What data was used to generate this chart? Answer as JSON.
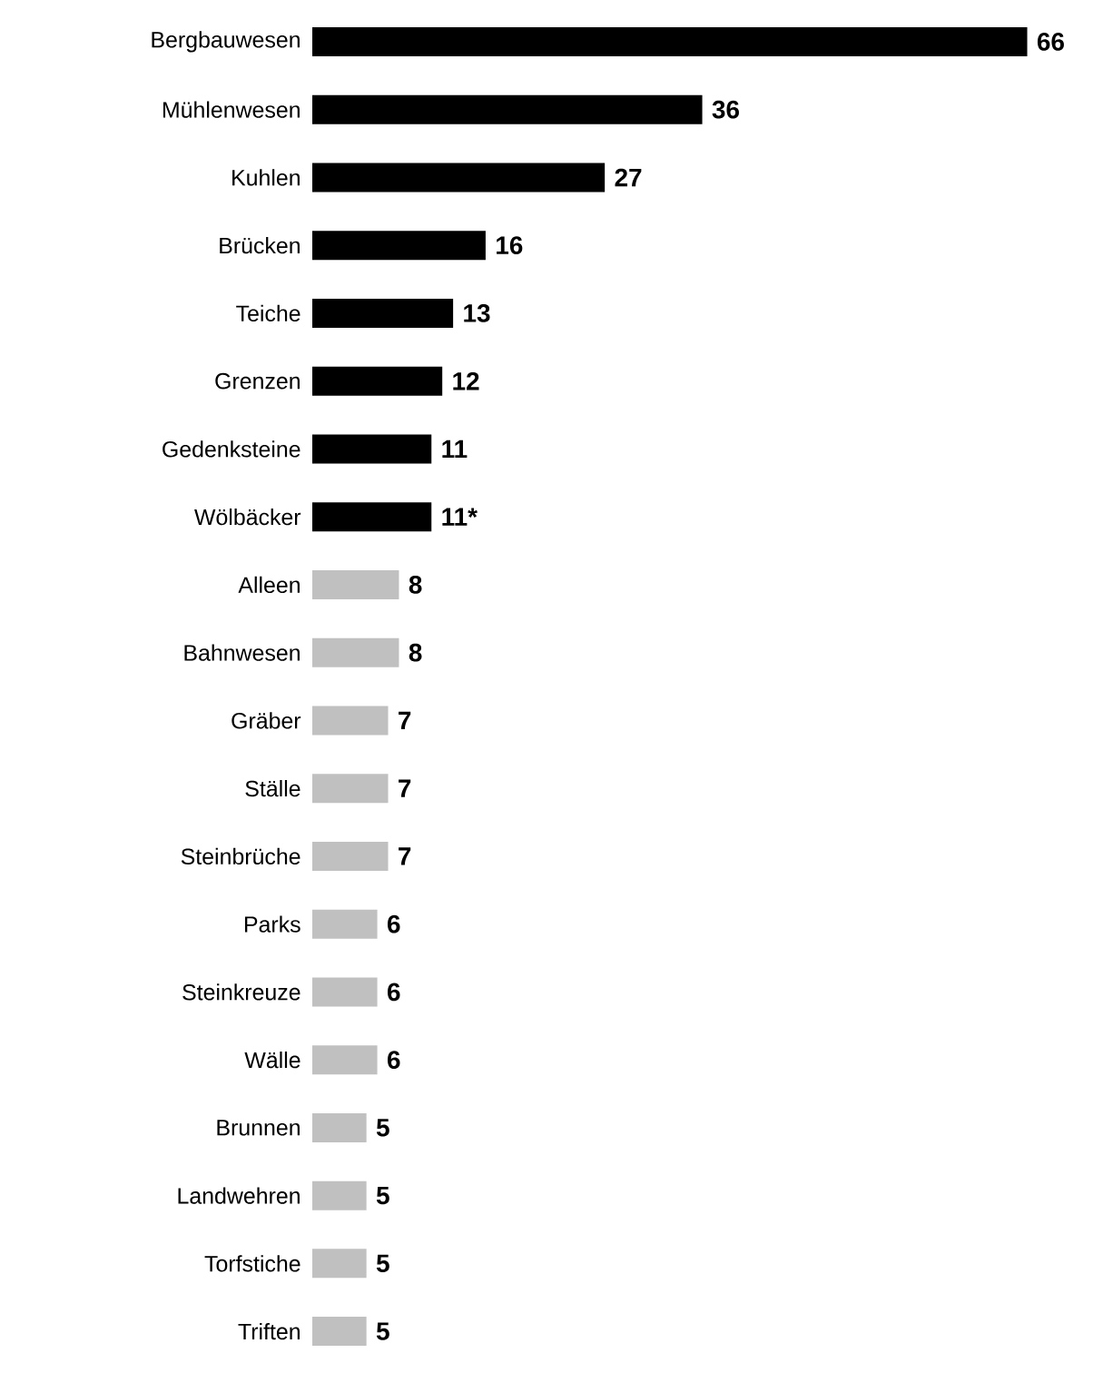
{
  "chart_data": {
    "type": "bar",
    "orientation": "horizontal",
    "categories": [
      "Bergbauwesen",
      "Mühlenwesen",
      "Kuhlen",
      "Brücken",
      "Teiche",
      "Grenzen",
      "Gedenksteine",
      "Wölbäcker",
      "Alleen",
      "Bahnwesen",
      "Gräber",
      "Ställe",
      "Steinbrüche",
      "Parks",
      "Steinkreuze",
      "Wälle",
      "Brunnen",
      "Landwehren",
      "Torfstiche",
      "Triften"
    ],
    "values": [
      66,
      36,
      27,
      16,
      13,
      12,
      11,
      11,
      8,
      8,
      7,
      7,
      7,
      6,
      6,
      6,
      5,
      5,
      5,
      5
    ],
    "value_labels": [
      "66",
      "36",
      "27",
      "16",
      "13",
      "12",
      "11",
      "11*",
      "8",
      "8",
      "7",
      "7",
      "7",
      "6",
      "6",
      "6",
      "5",
      "5",
      "5",
      "5"
    ],
    "colors": [
      "#000000",
      "#000000",
      "#000000",
      "#000000",
      "#000000",
      "#000000",
      "#000000",
      "#000000",
      "#c0c0c0",
      "#c0c0c0",
      "#c0c0c0",
      "#c0c0c0",
      "#c0c0c0",
      "#c0c0c0",
      "#c0c0c0",
      "#c0c0c0",
      "#c0c0c0",
      "#c0c0c0",
      "#c0c0c0",
      "#c0c0c0"
    ]
  }
}
